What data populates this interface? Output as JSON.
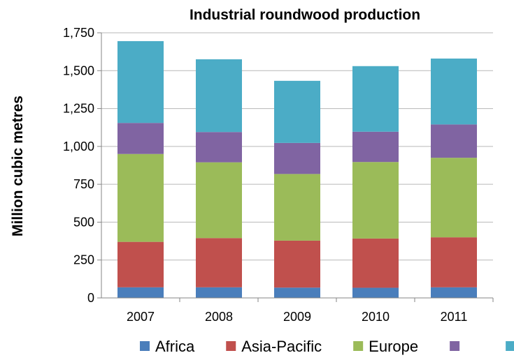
{
  "chart_data": {
    "type": "bar",
    "stacked": true,
    "title": "Industrial roundwood production",
    "xlabel": "",
    "ylabel": "Million cubic metres",
    "ylim": [
      0,
      1750
    ],
    "yticks": [
      "0",
      "250",
      "500",
      "750",
      "1,000",
      "1,250",
      "1,500",
      "1,750"
    ],
    "grid": true,
    "legend_position": "bottom",
    "categories": [
      "2007",
      "2008",
      "2009",
      "2010",
      "2011"
    ],
    "series": [
      {
        "name": "Africa",
        "color": "#4a7ebb",
        "values": [
          70,
          70,
          68,
          67,
          70
        ]
      },
      {
        "name": "Asia-Pacific",
        "color": "#c0504d",
        "values": [
          300,
          325,
          310,
          325,
          330
        ]
      },
      {
        "name": "Europe",
        "color": "#9bbb59",
        "values": [
          580,
          500,
          440,
          505,
          525
        ]
      },
      {
        "name": "",
        "color": "#8064a2",
        "values": [
          205,
          200,
          205,
          200,
          220
        ]
      },
      {
        "name": "",
        "color": "#4bacc6",
        "values": [
          540,
          480,
          410,
          433,
          435
        ]
      }
    ]
  }
}
